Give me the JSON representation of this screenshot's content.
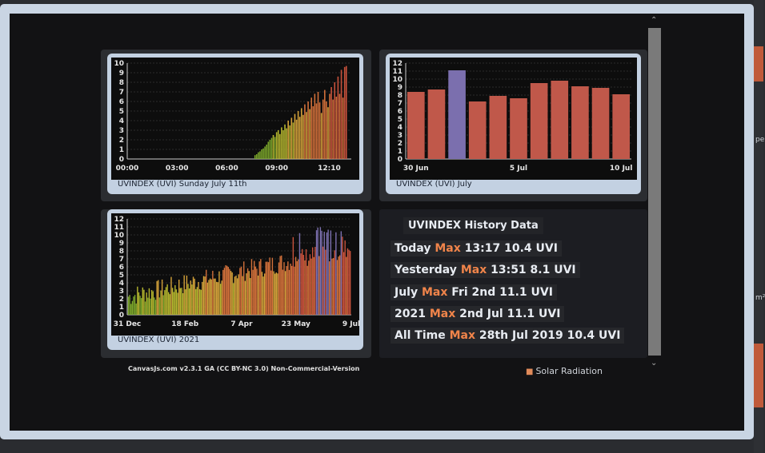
{
  "backdrop": {
    "right_label_1": "pe",
    "right_label_2": "m²"
  },
  "charts": {
    "daily_caption": "UVINDEX (UVI) Sunday July 11th",
    "monthly_caption": "UVINDEX (UVI) July",
    "yearly_caption": "UVINDEX (UVI) 2021"
  },
  "chart_data": [
    {
      "type": "bar",
      "title": "UVINDEX (UVI) Sunday July 11th",
      "x_tick_labels": [
        "00:00",
        "03:00",
        "06:00",
        "09:00",
        "12:10"
      ],
      "y_tick_labels": [
        "0",
        "1",
        "2",
        "3",
        "4",
        "5",
        "6",
        "7",
        "8",
        "9",
        "10"
      ],
      "ylim": [
        0,
        10
      ],
      "x_range_hours": [
        0,
        13.5
      ],
      "values_hours": [
        7.7,
        7.8,
        7.9,
        8.0,
        8.1,
        8.2,
        8.3,
        8.4,
        8.5,
        8.6,
        8.7,
        8.8,
        8.9,
        9.0,
        9.1,
        9.2,
        9.3,
        9.4,
        9.5,
        9.6,
        9.7,
        9.8,
        9.9,
        10.0,
        10.1,
        10.2,
        10.3,
        10.4,
        10.5,
        10.6,
        10.7,
        10.8,
        10.9,
        11.0,
        11.1,
        11.2,
        11.3,
        11.4,
        11.5,
        11.6,
        11.7,
        11.8,
        11.9,
        12.0,
        12.1,
        12.2,
        12.3,
        12.4,
        12.5,
        12.6,
        12.7,
        12.8,
        12.9,
        13.0,
        13.1,
        13.2
      ],
      "values": [
        0.4,
        0.5,
        0.7,
        0.8,
        1.0,
        1.1,
        1.3,
        1.5,
        1.8,
        2.0,
        2.2,
        2.5,
        2.3,
        2.8,
        3.0,
        2.6,
        3.3,
        3.0,
        3.6,
        3.2,
        4.0,
        3.5,
        4.3,
        3.8,
        4.7,
        4.1,
        5.0,
        4.4,
        5.3,
        4.6,
        5.7,
        4.9,
        6.0,
        5.2,
        6.4,
        5.5,
        6.8,
        5.8,
        7.0,
        5.9,
        4.8,
        6.2,
        7.2,
        6.0,
        5.4,
        6.8,
        7.5,
        6.2,
        8.0,
        6.5,
        8.6,
        6.8,
        9.3,
        6.4,
        9.6,
        9.7
      ],
      "grid": true
    },
    {
      "type": "bar",
      "title": "UVINDEX (UVI) July",
      "x_tick_labels": [
        "30 Jun",
        "5 Jul",
        "10 Jul"
      ],
      "y_tick_labels": [
        "0",
        "1",
        "2",
        "3",
        "4",
        "5",
        "6",
        "7",
        "8",
        "9",
        "10",
        "11",
        "12"
      ],
      "ylim": [
        0,
        12
      ],
      "categories": [
        "30 Jun",
        "1 Jul",
        "2 Jul",
        "3 Jul",
        "4 Jul",
        "5 Jul",
        "6 Jul",
        "7 Jul",
        "8 Jul",
        "9 Jul",
        "10 Jul"
      ],
      "values": [
        8.4,
        8.7,
        11.1,
        7.2,
        7.9,
        7.6,
        9.5,
        9.8,
        9.1,
        8.9,
        8.1
      ],
      "highlight_index": 2,
      "colors": {
        "bar": "#c0584a",
        "highlight": "#7b6fae"
      },
      "grid": true
    },
    {
      "type": "bar",
      "title": "UVINDEX (UVI) 2021",
      "x_tick_labels": [
        "31 Dec",
        "18 Feb",
        "7 Apr",
        "23 May",
        "9 Jul"
      ],
      "y_tick_labels": [
        "0",
        "1",
        "2",
        "3",
        "4",
        "5",
        "6",
        "7",
        "8",
        "9",
        "10",
        "11",
        "12"
      ],
      "ylim": [
        0,
        12
      ],
      "x_range_days": [
        0,
        190
      ],
      "peak_uvi_range": [
        2,
        11.1
      ],
      "grid": true
    }
  ],
  "history": {
    "title": "UVINDEX History Data",
    "max_word": "Max",
    "rows": [
      {
        "label": "Today",
        "value": "13:17 10.4 UVI"
      },
      {
        "label": "Yesterday",
        "value": "13:51 8.1 UVI"
      },
      {
        "label": "July",
        "value": "Fri 2nd 11.1 UVI"
      },
      {
        "label": "2021",
        "value": "2nd Jul 11.1 UVI"
      },
      {
        "label": "All Time",
        "value": "28th Jul 2019 10.4 UVI"
      }
    ]
  },
  "footer": {
    "credit": "CanvasJs.com v2.3.1 GA (CC BY-NC 3.0) Non-Commercial-Version",
    "solar_label": "Solar Radiation",
    "solar_icon": "sun-icon"
  },
  "scrollbar": {
    "up": "⌃",
    "down": "⌄"
  },
  "colors": {
    "accent_max": "#f0844a",
    "modal_frame": "#c9d5e3",
    "chart_bg": "#0d0d0d"
  }
}
